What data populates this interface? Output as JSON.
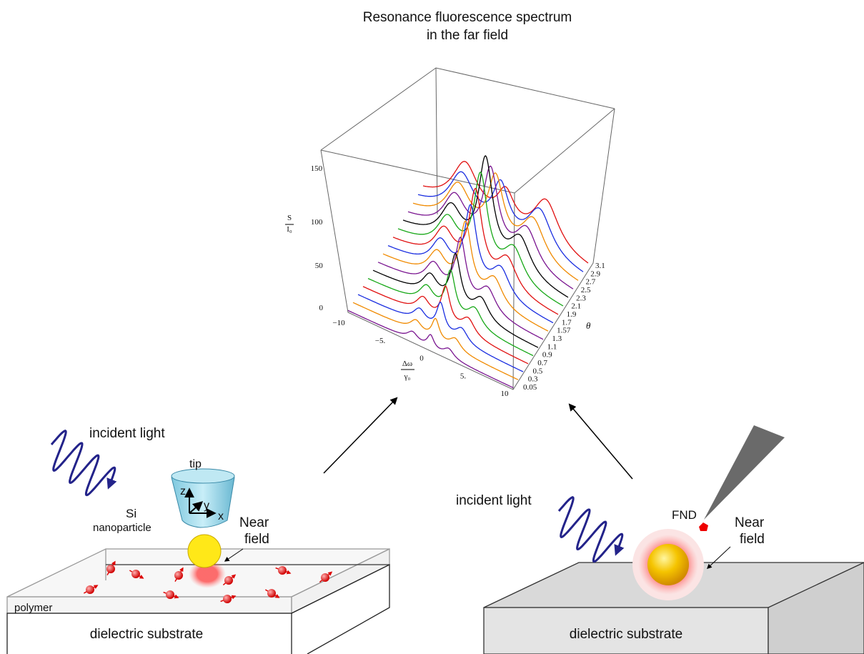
{
  "title": {
    "line1": "Resonance fluorescence spectrum",
    "line2": "in the far field"
  },
  "plot": {
    "z_label": {
      "top": "S",
      "bottom": "I₀"
    },
    "z_ticks": [
      "0",
      "50",
      "100",
      "150"
    ],
    "x_label": {
      "top": "Δω",
      "bottom": "γ₀"
    },
    "x_ticks": [
      "−10",
      "−5.",
      "0",
      "5.",
      "10"
    ],
    "theta_label": "θ",
    "theta_ticks": [
      "0.05",
      "0.3",
      "0.5",
      "0.7",
      "0.9",
      "1.1",
      "1.3",
      "1.57",
      "1.7",
      "1.9",
      "2.1",
      "2.3",
      "2.5",
      "2.7",
      "2.9",
      "3.1"
    ]
  },
  "left_scene": {
    "incident_light": "incident light",
    "tip": "tip",
    "axes": [
      "z",
      "y",
      "x"
    ],
    "particle": [
      "Si",
      "nanoparticle"
    ],
    "near_field": [
      "Near",
      "field"
    ],
    "layer": "polymer",
    "substrate": "dielectric substrate"
  },
  "right_scene": {
    "incident_light": "incident light",
    "emitter": "FND",
    "near_field": [
      "Near",
      "field"
    ],
    "substrate": "dielectric substrate"
  }
}
